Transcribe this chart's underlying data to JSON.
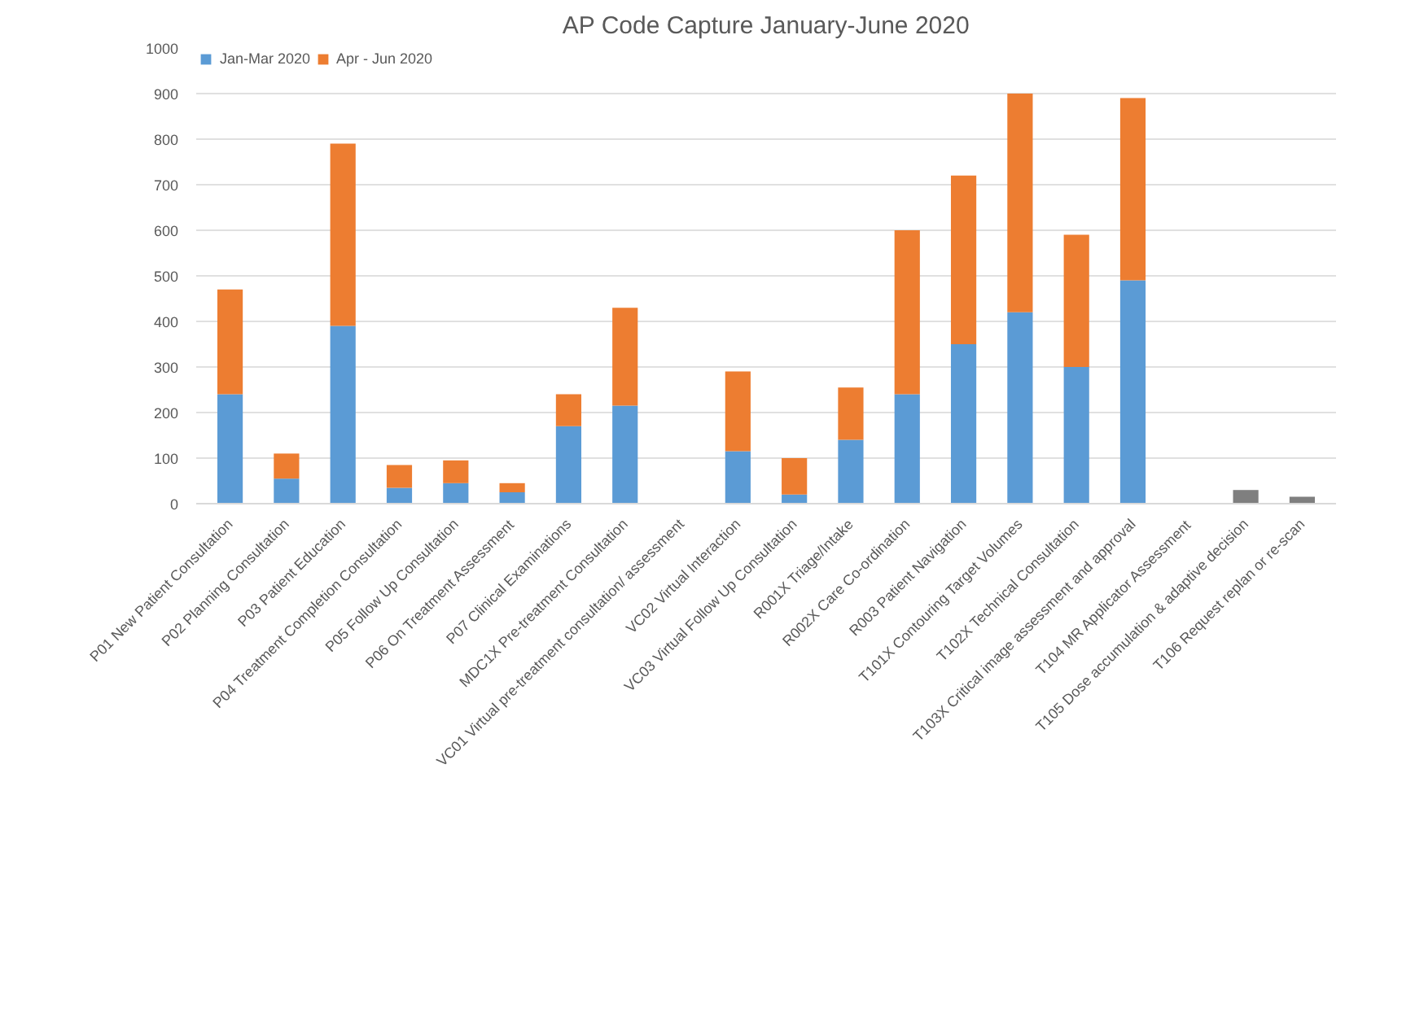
{
  "chart_data": {
    "type": "bar",
    "title": "AP Code Capture January-June 2020",
    "stacked": true,
    "categories": [
      "P01 New Patient Consultation",
      "P02 Planning Consultation",
      "P03 Patient Education",
      "P04 Treatment Completion Consultation",
      "P05 Follow Up Consultation",
      "P06 On Treatment Assessment",
      "P07 Clinical Examinations",
      "MDC1X Pre-treatment Consultation",
      "VC01 Virtual pre-treatment consultation/ assessment",
      "VC02 Virtual Interaction",
      "VC03 Virtual Follow Up Consultation",
      "R001X Triage/Intake",
      "R002X Care Co-ordination",
      "R003 Patient Navigation",
      "T101X Contouring Target Volumes",
      "T102X Technical Consultation",
      "T103X Critical image assessment and approval",
      "T104 MR Applicator Assessment",
      "T105 Dose accumulation & adaptive decision",
      "T106 Request replan or re-scan"
    ],
    "series": [
      {
        "name": "Jan-Mar 2020",
        "color": "#5b9bd5",
        "values": [
          240,
          55,
          390,
          35,
          45,
          25,
          170,
          215,
          null,
          115,
          20,
          140,
          240,
          350,
          420,
          300,
          490,
          null,
          null,
          null
        ]
      },
      {
        "name": "Apr - Jun 2020",
        "color": "#ed7d31",
        "values": [
          230,
          55,
          400,
          50,
          50,
          20,
          70,
          215,
          null,
          175,
          80,
          115,
          360,
          370,
          480,
          290,
          400,
          null,
          null,
          null
        ]
      },
      {
        "color": "#7f7f7f",
        "values": [
          null,
          null,
          null,
          null,
          null,
          null,
          null,
          null,
          null,
          null,
          null,
          null,
          null,
          null,
          null,
          null,
          null,
          null,
          30,
          15
        ]
      }
    ],
    "ylim": [
      0,
      1000
    ],
    "yticks": [
      0,
      100,
      200,
      300,
      400,
      500,
      600,
      700,
      800,
      900,
      1000
    ],
    "grid": "y",
    "legend": "top left"
  }
}
